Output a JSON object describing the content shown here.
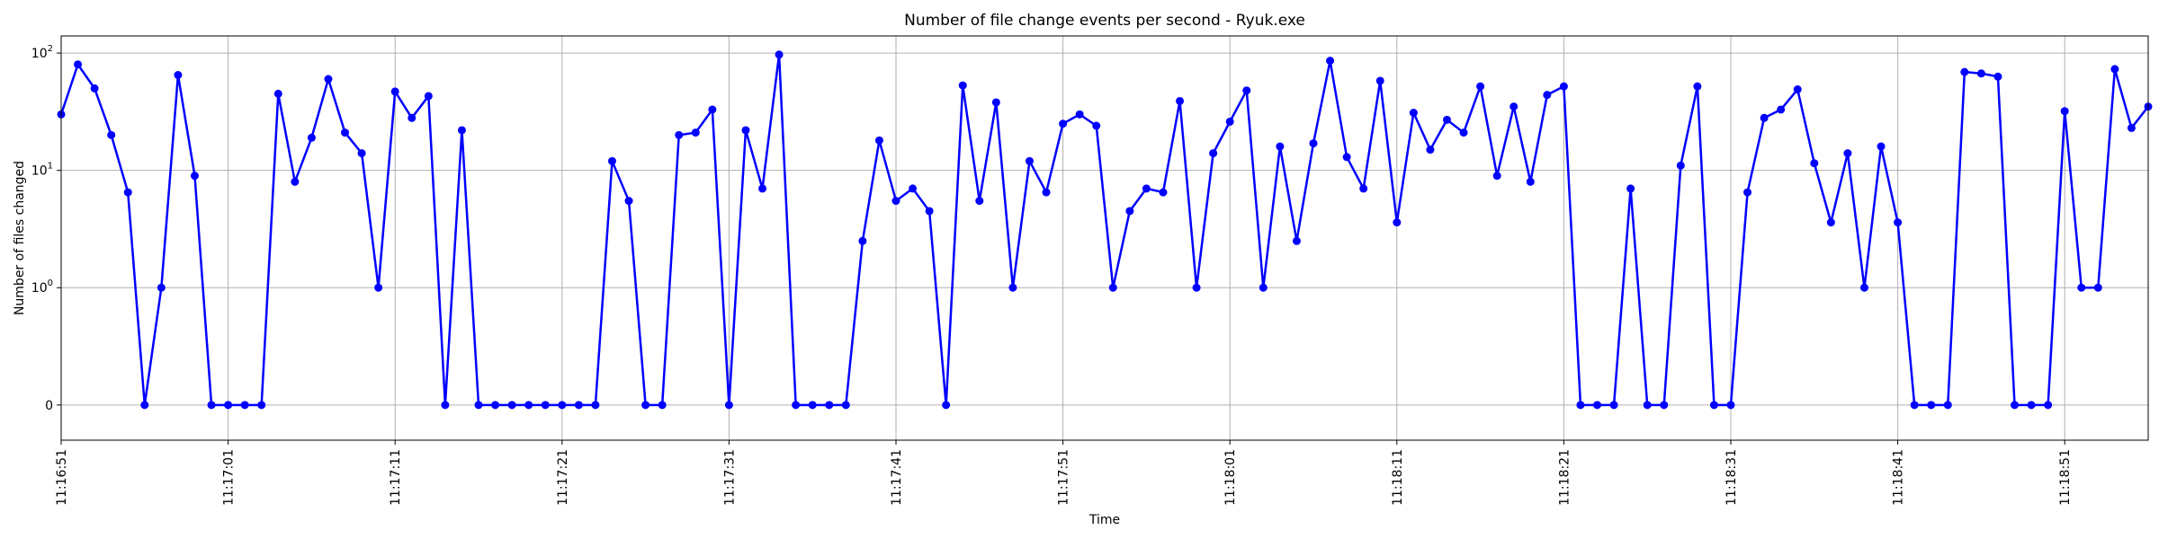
{
  "chart_data": {
    "type": "line",
    "title": "Number of file change events per second - Ryuk.exe",
    "xlabel": "Time",
    "ylabel": "Number of files changed",
    "y_scale": "symlog",
    "ylim": [
      -0.3,
      140
    ],
    "grid": true,
    "series": [
      {
        "color": "#0000ff",
        "marker": "circle",
        "values": [
          30,
          80,
          50,
          20,
          6.5,
          0,
          1,
          65,
          9,
          0,
          0,
          0,
          0,
          45,
          8,
          19,
          60,
          21,
          14,
          1,
          47,
          28,
          43,
          0,
          22,
          0,
          0,
          0,
          0,
          0,
          0,
          0,
          0,
          12,
          5.5,
          0,
          0,
          20,
          21,
          33,
          0,
          22,
          7,
          97,
          0,
          0,
          0,
          0,
          2.5,
          18,
          5.5,
          7,
          4.5,
          0,
          53,
          5.5,
          38,
          1,
          12,
          6.5,
          25,
          30,
          24,
          1,
          4.5,
          7,
          6.5,
          39,
          1,
          14,
          26,
          48,
          1,
          16,
          2.5,
          17,
          86,
          13,
          7,
          58,
          3.6,
          31,
          15,
          27,
          21,
          52,
          9,
          35,
          8,
          44,
          52,
          0,
          0,
          0,
          7,
          0,
          0,
          11,
          52,
          0,
          0,
          6.5,
          28,
          33,
          49,
          11.5,
          3.6,
          14,
          1,
          16,
          3.6,
          0,
          0,
          0,
          69,
          67,
          63,
          0,
          0,
          0,
          32,
          1,
          1,
          73,
          23,
          35
        ]
      }
    ],
    "x_ticks": [
      "11:16:51",
      "11:17:01",
      "11:17:11",
      "11:17:21",
      "11:17:31",
      "11:17:41",
      "11:17:51",
      "11:18:01",
      "11:18:11",
      "11:18:21",
      "11:18:31",
      "11:18:41",
      "11:18:51"
    ],
    "x_tick_every": 10,
    "y_ticks": [
      {
        "value": 0,
        "base": "0",
        "exp": ""
      },
      {
        "value": 1,
        "base": "10",
        "exp": "0"
      },
      {
        "value": 10,
        "base": "10",
        "exp": "1"
      },
      {
        "value": 100,
        "base": "10",
        "exp": "2"
      }
    ]
  }
}
